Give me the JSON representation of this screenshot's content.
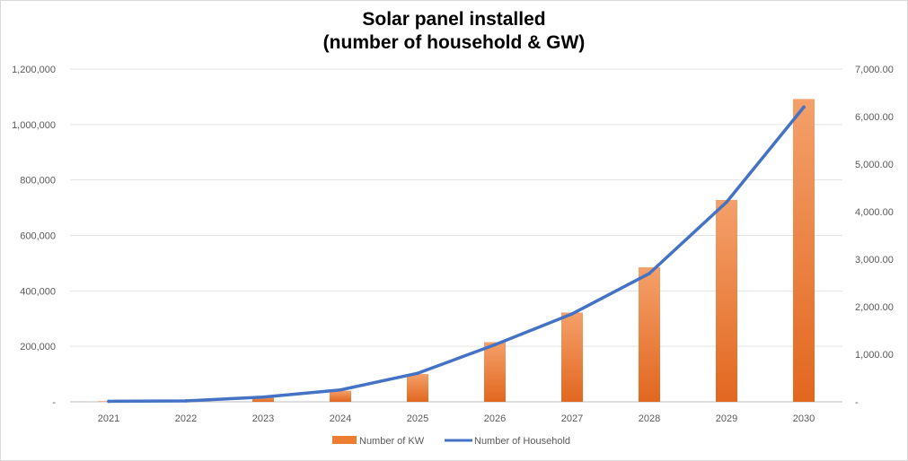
{
  "chart_data": {
    "type": "bar",
    "title": [
      "Solar panel installed",
      "(number of household & GW)"
    ],
    "categories": [
      "2021",
      "2022",
      "2023",
      "2024",
      "2025",
      "2026",
      "2027",
      "2028",
      "2029",
      "2030"
    ],
    "y_left": {
      "ticks": [
        "-",
        "200,000",
        "400,000",
        "600,000",
        "800,000",
        "1,000,000",
        "1,200,000"
      ],
      "ylim": [
        0,
        1200000
      ]
    },
    "y_right": {
      "ticks": [
        "-",
        "1,000.00",
        "2,000.00",
        "3,000.00",
        "4,000.00",
        "5,000.00",
        "6,000.00",
        "7,000.00"
      ],
      "ylim": [
        0,
        7000
      ]
    },
    "series": [
      {
        "name": "Number of KW",
        "kind": "bar",
        "axis": "left",
        "color": "#ed7d31",
        "values": [
          2000,
          5000,
          18000,
          40000,
          100000,
          215000,
          322000,
          485000,
          728000,
          1092000
        ]
      },
      {
        "name": "Number of Household",
        "kind": "line",
        "axis": "right",
        "color": "#4472c4",
        "values": [
          10,
          20,
          100,
          250,
          600,
          1200,
          1850,
          2700,
          4200,
          6200
        ]
      }
    ],
    "grid": true,
    "legend_position": "bottom"
  }
}
